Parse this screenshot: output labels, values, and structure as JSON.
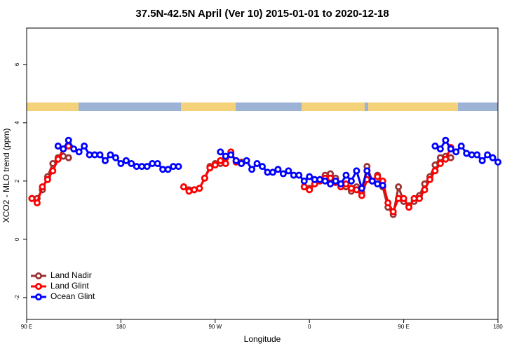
{
  "chart_data": {
    "type": "line",
    "title": "37.5N-42.5N April (Ver 10)   2015-01-01 to 2020-12-18",
    "xlabel": "Longitude",
    "ylabel": "XCO2 - MLO trend (ppm)",
    "xlim": [
      90,
      540
    ],
    "ylim": [
      -2.75,
      7.25
    ],
    "xticks": [
      {
        "value": 90,
        "label": "90 E"
      },
      180,
      {
        "value": 270,
        "label": "90 W"
      },
      {
        "value": 360,
        "label": "0"
      },
      {
        "value": 450,
        "label": "90 E"
      },
      {
        "value": 540,
        "label": "180"
      }
    ],
    "yticks": [
      -2,
      0,
      2,
      4,
      6
    ],
    "legend": "bottom-left",
    "series": [
      {
        "name": "Land Nadir",
        "color": "#993333",
        "x": [
          95,
          100,
          105,
          110,
          115,
          120,
          125,
          130,
          135,
          240,
          245,
          250,
          255,
          260,
          265,
          270,
          275,
          280,
          285,
          290,
          295,
          300,
          355,
          360,
          365,
          370,
          375,
          380,
          385,
          390,
          395,
          400,
          405,
          410,
          415,
          420,
          425,
          430,
          435,
          440,
          445,
          450,
          455,
          460,
          465,
          470,
          475,
          480,
          485,
          490,
          495
        ],
        "values": [
          1.4,
          1.4,
          1.7,
          2.15,
          2.6,
          2.8,
          2.85,
          2.8,
          null,
          1.8,
          1.7,
          1.7,
          1.75,
          2.1,
          2.5,
          2.6,
          2.6,
          2.8,
          2.95,
          2.7,
          2.65,
          null,
          1.8,
          1.75,
          1.9,
          2.05,
          2.2,
          2.25,
          2.1,
          1.9,
          1.8,
          1.65,
          1.8,
          1.6,
          2.5,
          2.0,
          2.2,
          1.8,
          1.1,
          0.85,
          1.8,
          1.3,
          1.15,
          1.3,
          1.5,
          1.9,
          2.15,
          2.55,
          2.8,
          2.85,
          2.8
        ]
      },
      {
        "name": "Land Glint",
        "color": "#ff0000",
        "x": [
          95,
          100,
          105,
          110,
          115,
          120,
          125,
          130,
          135,
          240,
          245,
          250,
          255,
          260,
          265,
          270,
          275,
          280,
          285,
          290,
          295,
          300,
          355,
          360,
          365,
          370,
          375,
          380,
          385,
          390,
          395,
          400,
          405,
          410,
          415,
          420,
          425,
          430,
          435,
          440,
          445,
          450,
          455,
          460,
          465,
          470,
          475,
          480,
          485,
          490,
          495
        ],
        "values": [
          1.4,
          1.25,
          1.8,
          2.05,
          2.35,
          2.75,
          3.1,
          3.2,
          null,
          1.8,
          1.65,
          1.7,
          1.75,
          2.1,
          2.45,
          2.55,
          2.7,
          2.6,
          3.0,
          2.65,
          2.6,
          null,
          1.8,
          1.7,
          1.9,
          2.0,
          2.1,
          2.1,
          1.95,
          1.8,
          1.9,
          1.75,
          1.7,
          1.5,
          2.05,
          2.0,
          2.15,
          2.0,
          1.25,
          0.95,
          1.4,
          1.4,
          1.1,
          1.4,
          1.4,
          1.7,
          2.05,
          2.35,
          2.6,
          2.75,
          3.15
        ]
      },
      {
        "name": "Ocean Glint",
        "color": "#0000ff",
        "x": [
          120,
          125,
          130,
          135,
          140,
          145,
          150,
          155,
          160,
          165,
          170,
          175,
          180,
          185,
          190,
          195,
          200,
          205,
          210,
          215,
          220,
          225,
          230,
          235,
          240,
          275,
          280,
          285,
          290,
          295,
          300,
          305,
          310,
          315,
          320,
          325,
          330,
          335,
          340,
          345,
          350,
          355,
          360,
          365,
          370,
          375,
          380,
          385,
          390,
          395,
          400,
          405,
          410,
          415,
          420,
          425,
          430,
          435,
          480,
          485,
          490,
          495,
          500,
          505,
          510,
          515,
          520,
          525,
          530,
          535,
          540
        ],
        "values": [
          3.2,
          3.1,
          3.4,
          3.1,
          3.0,
          3.2,
          2.9,
          2.9,
          2.9,
          2.7,
          2.9,
          2.8,
          2.6,
          2.7,
          2.6,
          2.5,
          2.5,
          2.5,
          2.6,
          2.6,
          2.4,
          2.4,
          2.5,
          2.5,
          null,
          3.0,
          2.85,
          2.9,
          2.7,
          2.6,
          2.7,
          2.4,
          2.6,
          2.5,
          2.3,
          2.3,
          2.4,
          2.25,
          2.35,
          2.2,
          2.2,
          2.0,
          2.15,
          2.05,
          2.05,
          2.0,
          1.9,
          2.0,
          1.9,
          2.2,
          2.0,
          2.35,
          1.75,
          2.35,
          2.0,
          1.9,
          1.85,
          null,
          3.2,
          3.1,
          3.4,
          3.1,
          3.0,
          3.2,
          2.95,
          2.9,
          2.9,
          2.7,
          2.9,
          2.8,
          2.65
        ]
      }
    ]
  }
}
